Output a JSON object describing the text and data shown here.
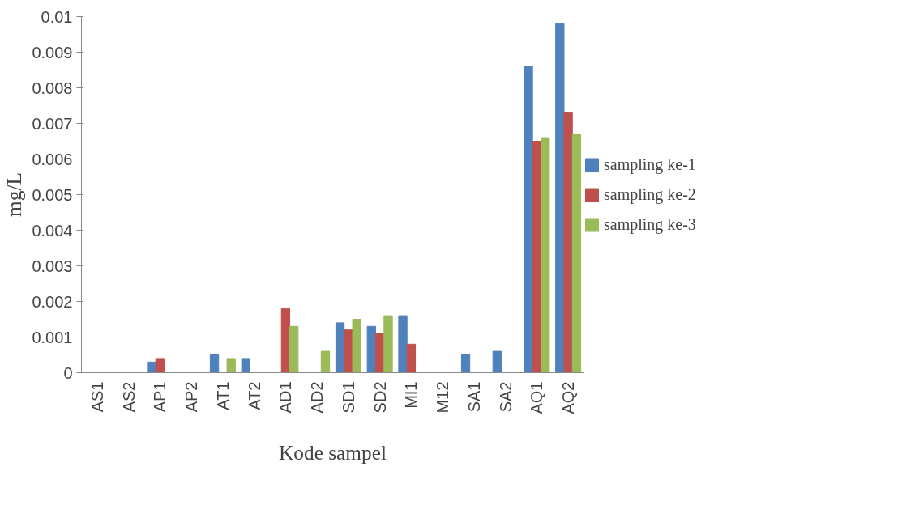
{
  "chart_data": {
    "type": "bar",
    "xlabel": "Kode sampel",
    "ylabel": "mg/L",
    "categories": [
      "AS1",
      "AS2",
      "AP1",
      "AP2",
      "AT1",
      "AT2",
      "AD1",
      "AD2",
      "SD1",
      "SD2",
      "MI1",
      "M12",
      "SA1",
      "SA2",
      "AQ1",
      "AQ2"
    ],
    "series": [
      {
        "name": "sampling ke-1",
        "color": "#4f81bd",
        "values": [
          0,
          0,
          0.0003,
          0,
          0.0005,
          0.0004,
          0,
          0,
          0.0014,
          0.0013,
          0.0016,
          0,
          0.0005,
          0.0006,
          0.0086,
          0.0098
        ]
      },
      {
        "name": "sampling ke-2",
        "color": "#c0504d",
        "values": [
          0,
          0,
          0.0004,
          0,
          0,
          0,
          0.0018,
          0,
          0.0012,
          0.0011,
          0.0008,
          0,
          0,
          0,
          0.0065,
          0.0073
        ]
      },
      {
        "name": "sampling ke-3",
        "color": "#9bbb59",
        "values": [
          0,
          0,
          0,
          0,
          0.0004,
          0,
          0.0013,
          0.0006,
          0.0015,
          0.0016,
          0,
          0,
          0,
          0,
          0.0066,
          0.0067
        ]
      }
    ],
    "ylim": [
      0,
      0.01
    ],
    "yticks": [
      0,
      0.001,
      0.002,
      0.003,
      0.004,
      0.005,
      0.006,
      0.007,
      0.008,
      0.009,
      0.01
    ],
    "grid": false,
    "legend": "right"
  }
}
